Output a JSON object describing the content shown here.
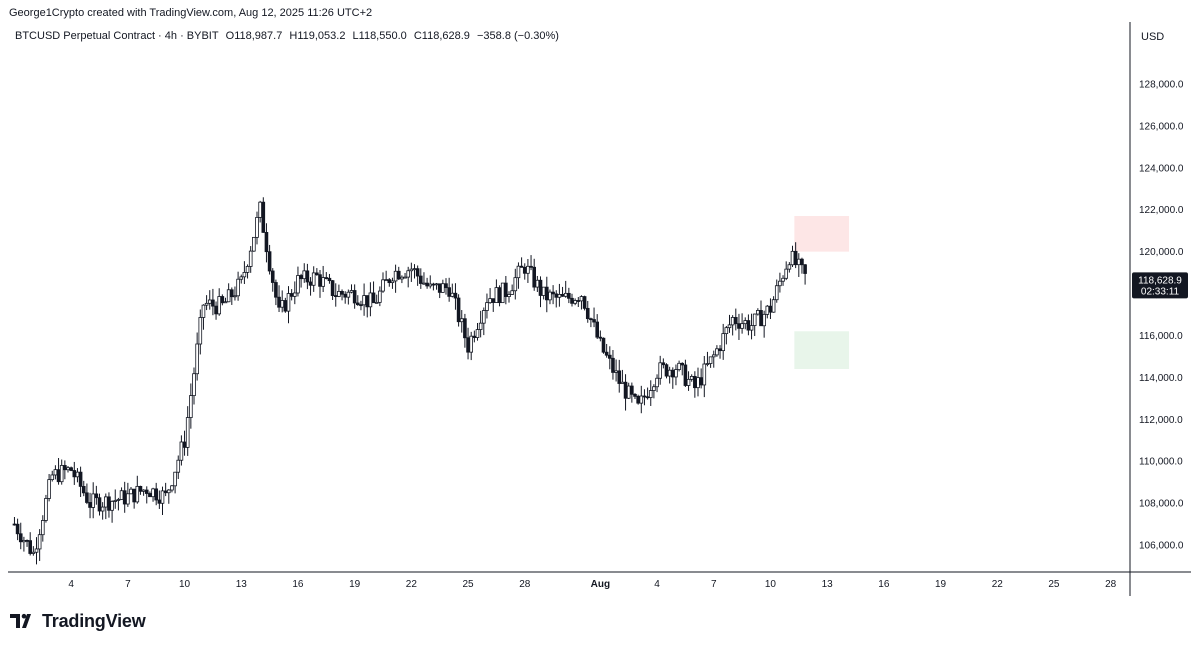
{
  "credit": "George1Crypto created with TradingView.com, Aug 12, 2025 11:26 UTC+2",
  "header": {
    "symbol": "BTCUSD Perpetual Contract · 4h · BYBIT",
    "open": "O118,987.7",
    "high": "H119,053.2",
    "low": "L118,550.0",
    "close": "C118,628.9",
    "change": "−358.8 (−0.30%)"
  },
  "currency": "USD",
  "brand": "TradingView",
  "colors": {
    "candle": "#131722",
    "resistance_zone": "#fde6e6",
    "support_zone": "#e8f5ea",
    "price_tag_bg": "#131722"
  },
  "chart_data": {
    "type": "candlestick",
    "timeframe": "4h",
    "x_ticks": [
      "4",
      "7",
      "10",
      "13",
      "16",
      "19",
      "22",
      "25",
      "28",
      "Aug",
      "4",
      "7",
      "10",
      "13",
      "16",
      "19",
      "22",
      "25",
      "28"
    ],
    "y_ticks": [
      "106,000.0",
      "108,000.0",
      "110,000.0",
      "112,000.0",
      "114,000.0",
      "116,000.0",
      "118,000.0",
      "120,000.0",
      "122,000.0",
      "124,000.0",
      "126,000.0",
      "128,000.0"
    ],
    "ylim": [
      104500,
      130500
    ],
    "last_price": "118,628.9",
    "countdown": "02:33:11",
    "close_path": [
      {
        "date": "2025-07-01",
        "price": 107000
      },
      {
        "date": "2025-07-02",
        "price": 105600
      },
      {
        "date": "2025-07-03",
        "price": 109300
      },
      {
        "date": "2025-07-04",
        "price": 109600
      },
      {
        "date": "2025-07-05",
        "price": 108000
      },
      {
        "date": "2025-07-06",
        "price": 108100
      },
      {
        "date": "2025-07-07",
        "price": 108300
      },
      {
        "date": "2025-07-08",
        "price": 108700
      },
      {
        "date": "2025-07-09",
        "price": 108300
      },
      {
        "date": "2025-07-10",
        "price": 111000
      },
      {
        "date": "2025-07-11",
        "price": 117500
      },
      {
        "date": "2025-07-12",
        "price": 117400
      },
      {
        "date": "2025-07-13",
        "price": 118500
      },
      {
        "date": "2025-07-14",
        "price": 122000
      },
      {
        "date": "2025-07-15",
        "price": 117000
      },
      {
        "date": "2025-07-16",
        "price": 118600
      },
      {
        "date": "2025-07-17",
        "price": 118800
      },
      {
        "date": "2025-07-18",
        "price": 118000
      },
      {
        "date": "2025-07-19",
        "price": 118000
      },
      {
        "date": "2025-07-20",
        "price": 117500
      },
      {
        "date": "2025-07-21",
        "price": 119000
      },
      {
        "date": "2025-07-22",
        "price": 119200
      },
      {
        "date": "2025-07-23",
        "price": 118200
      },
      {
        "date": "2025-07-24",
        "price": 118300
      },
      {
        "date": "2025-07-25",
        "price": 115500
      },
      {
        "date": "2025-07-26",
        "price": 117800
      },
      {
        "date": "2025-07-27",
        "price": 118100
      },
      {
        "date": "2025-07-28",
        "price": 119300
      },
      {
        "date": "2025-07-29",
        "price": 117900
      },
      {
        "date": "2025-07-30",
        "price": 117700
      },
      {
        "date": "2025-07-31",
        "price": 118000
      },
      {
        "date": "2025-08-01",
        "price": 115500
      },
      {
        "date": "2025-08-02",
        "price": 113800
      },
      {
        "date": "2025-08-03",
        "price": 112500
      },
      {
        "date": "2025-08-04",
        "price": 114300
      },
      {
        "date": "2025-08-05",
        "price": 114500
      },
      {
        "date": "2025-08-06",
        "price": 113500
      },
      {
        "date": "2025-08-07",
        "price": 115000
      },
      {
        "date": "2025-08-08",
        "price": 116800
      },
      {
        "date": "2025-08-09",
        "price": 116500
      },
      {
        "date": "2025-08-10",
        "price": 117300
      },
      {
        "date": "2025-08-11",
        "price": 119800
      },
      {
        "date": "2025-08-12",
        "price": 118600
      }
    ],
    "zones": [
      {
        "name": "resistance",
        "date_start": "2025-08-11",
        "date_end": "2025-08-14",
        "price_low": 120000,
        "price_high": 121700
      },
      {
        "name": "support",
        "date_start": "2025-08-11",
        "date_end": "2025-08-14",
        "price_low": 114400,
        "price_high": 116200
      }
    ]
  }
}
